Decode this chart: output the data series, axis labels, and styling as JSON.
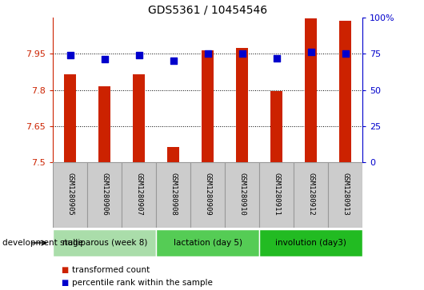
{
  "title": "GDS5361 / 10454546",
  "samples": [
    "GSM1280905",
    "GSM1280906",
    "GSM1280907",
    "GSM1280908",
    "GSM1280909",
    "GSM1280910",
    "GSM1280911",
    "GSM1280912",
    "GSM1280913"
  ],
  "transformed_counts": [
    7.865,
    7.815,
    7.865,
    7.565,
    7.965,
    7.975,
    7.795,
    8.095,
    8.085
  ],
  "percentile_ranks": [
    74,
    71,
    74,
    70,
    75,
    75,
    72,
    76,
    75
  ],
  "ylim": [
    7.5,
    8.1
  ],
  "yticks": [
    7.5,
    7.65,
    7.8,
    7.95
  ],
  "ytick_labels": [
    "7.5",
    "7.65",
    "7.8",
    "7.95"
  ],
  "right_yticks": [
    0,
    25,
    50,
    75,
    100
  ],
  "right_ytick_labels": [
    "0",
    "25",
    "50",
    "75",
    "100%"
  ],
  "bar_color": "#cc2200",
  "dot_color": "#0000cc",
  "groups": [
    {
      "label": "nulliparous (week 8)",
      "start": 0,
      "end": 3,
      "color": "#aaddaa"
    },
    {
      "label": "lactation (day 5)",
      "start": 3,
      "end": 6,
      "color": "#55cc55"
    },
    {
      "label": "involution (day3)",
      "start": 6,
      "end": 9,
      "color": "#22bb22"
    }
  ],
  "legend_bar_label": "transformed count",
  "legend_dot_label": "percentile rank within the sample",
  "dev_stage_label": "development stage",
  "background_color": "#ffffff",
  "bar_width": 0.35,
  "dot_size": 30,
  "sample_box_color": "#cccccc",
  "sample_box_edge": "#999999"
}
